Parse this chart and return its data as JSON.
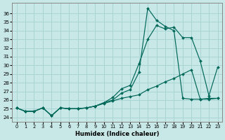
{
  "xlabel": "Humidex (Indice chaleur)",
  "background_color": "#c8e8e8",
  "grid_color": "#a8d4d4",
  "line_color": "#006858",
  "xlim": [
    -0.5,
    23.5
  ],
  "ylim": [
    23.5,
    37.2
  ],
  "xticks": [
    0,
    1,
    2,
    3,
    4,
    5,
    6,
    7,
    8,
    9,
    10,
    11,
    12,
    13,
    14,
    15,
    16,
    17,
    18,
    19,
    20,
    21,
    22,
    23
  ],
  "yticks": [
    24,
    25,
    26,
    27,
    28,
    29,
    30,
    31,
    32,
    33,
    34,
    35,
    36
  ],
  "line_spike": {
    "x": [
      0,
      1,
      2,
      3,
      4,
      5,
      6,
      7,
      8,
      9,
      10,
      11,
      12,
      13,
      14,
      15,
      16,
      17,
      18,
      19,
      20,
      21,
      22,
      23
    ],
    "y": [
      25.1,
      24.7,
      24.7,
      25.1,
      24.2,
      25.1,
      25.0,
      25.0,
      25.1,
      25.3,
      25.7,
      26.0,
      26.8,
      27.2,
      29.2,
      36.6,
      35.2,
      34.5,
      34.0,
      26.2,
      26.1,
      26.1,
      26.2,
      26.2
    ]
  },
  "line_broad": {
    "x": [
      0,
      1,
      2,
      3,
      4,
      5,
      6,
      7,
      8,
      9,
      10,
      11,
      12,
      13,
      14,
      15,
      16,
      17,
      18,
      19,
      20,
      21,
      22,
      23
    ],
    "y": [
      25.1,
      24.7,
      24.7,
      25.1,
      24.2,
      25.1,
      25.0,
      25.0,
      25.1,
      25.3,
      25.7,
      26.3,
      27.3,
      27.7,
      30.2,
      33.0,
      34.6,
      34.2,
      34.4,
      33.2,
      33.2,
      30.5,
      26.5,
      29.8
    ]
  },
  "line_flat": {
    "x": [
      0,
      1,
      2,
      3,
      4,
      5,
      6,
      7,
      8,
      9,
      10,
      11,
      12,
      13,
      14,
      15,
      16,
      17,
      18,
      19,
      20,
      21,
      22,
      23
    ],
    "y": [
      25.1,
      24.7,
      24.7,
      25.1,
      24.2,
      25.1,
      25.0,
      25.0,
      25.1,
      25.3,
      25.6,
      25.9,
      26.2,
      26.4,
      26.6,
      27.2,
      27.6,
      28.1,
      28.5,
      29.0,
      29.5,
      26.1,
      26.1,
      26.2
    ]
  }
}
